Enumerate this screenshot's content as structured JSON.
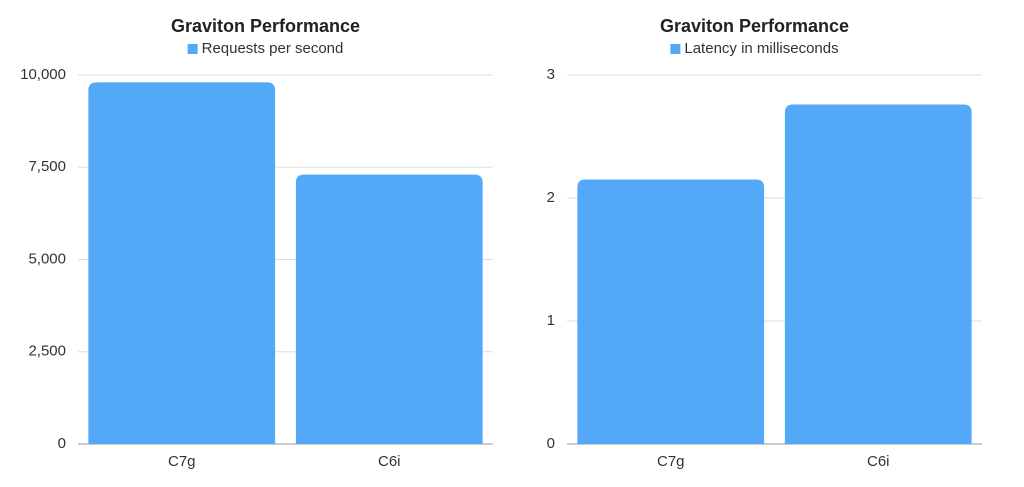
{
  "chart_data": [
    {
      "type": "bar",
      "title": "Graviton Performance",
      "categories": [
        "C7g",
        "C6i"
      ],
      "series": [
        {
          "name": "Requests per second",
          "color": "#53a8f8",
          "values": [
            9800,
            7300
          ]
        }
      ],
      "ylim": [
        0,
        10000
      ],
      "yticks": [
        0,
        {
          "value": 2500,
          "label": "2,500"
        },
        {
          "value": 5000,
          "label": "5,000"
        },
        {
          "value": 7500,
          "label": "7,500"
        },
        {
          "value": 10000,
          "label": "10,000"
        }
      ],
      "grid": true
    },
    {
      "type": "bar",
      "title": "Graviton Performance",
      "categories": [
        "C7g",
        "C6i"
      ],
      "series": [
        {
          "name": "Latency in milliseconds",
          "color": "#53a8f8",
          "values": [
            2.15,
            2.76
          ]
        }
      ],
      "ylim": [
        0,
        3
      ],
      "yticks": [
        0,
        1,
        2,
        3
      ],
      "grid": true
    }
  ]
}
